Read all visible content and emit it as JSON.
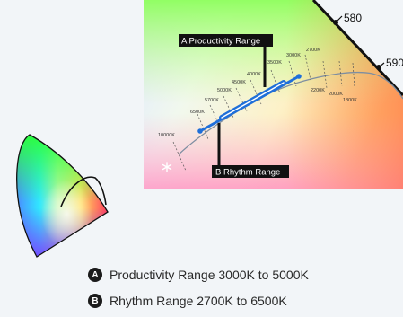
{
  "chart_title": "",
  "wavelengths": [
    "580",
    "590"
  ],
  "callouts": {
    "productivity": "A Productivity Range",
    "rhythm": "B Rhythm Range"
  },
  "cct_labels": [
    "10000K",
    "6500K",
    "5700K",
    "5000K",
    "4500K",
    "4000K",
    "3500K",
    "3000K",
    "2700K",
    "2200K",
    "2000K",
    "1800K"
  ],
  "legend": [
    {
      "badge": "A",
      "text": "Productivity Range 3000K to 5000K"
    },
    {
      "badge": "B",
      "text": "Rhythm Range 2700K to 6500K"
    }
  ],
  "colors": {
    "page_background": "#f2f5f8",
    "range_line": "#1f6fd9",
    "callout_background": "#111111",
    "locus_curve": "#7e8ea1"
  }
}
